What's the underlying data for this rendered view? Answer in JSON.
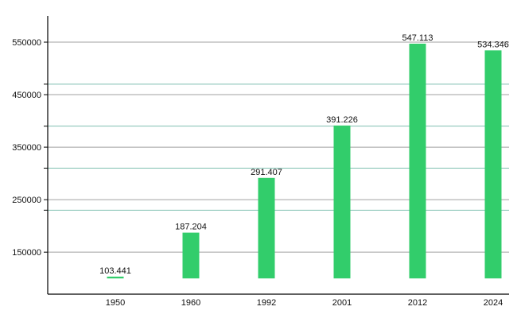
{
  "chart_data": {
    "type": "bar",
    "title": "",
    "xlabel": "",
    "ylabel": "",
    "categories": [
      "1950",
      "1960",
      "1992",
      "2001",
      "2012",
      "2024"
    ],
    "values": [
      103441,
      187204,
      291407,
      391226,
      547113,
      534346
    ],
    "data_labels": [
      "103.441",
      "187.204",
      "291.407",
      "391.226",
      "547.113",
      "534.346"
    ],
    "bar_baseline": 100000,
    "ylim": [
      70000,
      600000
    ],
    "y_ticks": [
      150000,
      250000,
      350000,
      450000,
      550000
    ],
    "y_tick_labels": [
      "150000",
      "250000",
      "350000",
      "450000",
      "550000"
    ],
    "minor_lines": [
      230000,
      310000,
      390000,
      470000
    ],
    "grid": true,
    "legend": "none",
    "colors": {
      "bar": "#32cd6b",
      "grid": "#a0a0a0",
      "minor_grid": "#7fbfb0",
      "axis": "#000000"
    }
  }
}
